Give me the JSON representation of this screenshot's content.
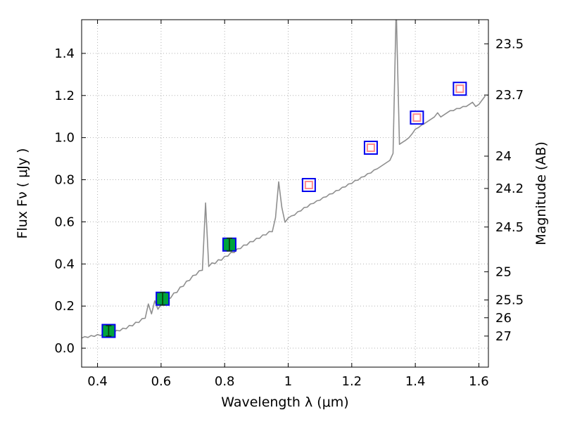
{
  "chart_data": {
    "type": "line",
    "title": "",
    "xlabel": "Wavelength  λ (μm)",
    "ylabel": "Flux  Fν  ( μJy )",
    "xlim": [
      0.35,
      1.63
    ],
    "ylim": [
      -0.09,
      1.56
    ],
    "x_ticks": [
      0.4,
      0.6,
      0.8,
      1,
      1.2,
      1.4,
      1.6
    ],
    "x_tick_labels": [
      "0.4",
      "0.6",
      "0.8",
      "1",
      "1.2",
      "1.4",
      "1.6"
    ],
    "y_ticks": [
      0,
      0.2,
      0.4,
      0.6,
      0.8,
      1,
      1.2,
      1.4
    ],
    "y_tick_labels": [
      "0.0",
      "0.2",
      "0.4",
      "0.6",
      "0.8",
      "1.0",
      "1.2",
      "1.4"
    ],
    "grid": true,
    "legend": "none",
    "right_axis": {
      "label": "Magnitude (AB)",
      "ticks": [
        23.5,
        23.7,
        24,
        24.2,
        24.5,
        25,
        25.5,
        26,
        27
      ],
      "tick_labels": [
        "23.5",
        "23.7",
        "24",
        "24.2",
        "24.5",
        "25",
        "25.5",
        "26",
        "27"
      ],
      "ab_zeropoint_ujy": 23.9
    },
    "colors": {
      "grid": "#b3b3b3",
      "frame": "#000000",
      "spectrum": "#8f8f8f",
      "marker_edge_blue": "#0000ee",
      "marker_face_green": "#00a33d",
      "marker_inner_pink": "#ff8c8c",
      "errorbar": "#0b3d0b",
      "background": "#ffffff"
    },
    "spectrum": {
      "name": "galaxy-spectrum",
      "color": "#8f8f8f",
      "x_start": 0.35,
      "x_step": 0.01,
      "y": [
        0.048,
        0.055,
        0.051,
        0.06,
        0.056,
        0.065,
        0.06,
        0.07,
        0.066,
        0.077,
        0.073,
        0.085,
        0.082,
        0.095,
        0.092,
        0.108,
        0.106,
        0.123,
        0.122,
        0.14,
        0.142,
        0.21,
        0.163,
        0.225,
        0.185,
        0.208,
        0.212,
        0.235,
        0.238,
        0.262,
        0.265,
        0.29,
        0.294,
        0.318,
        0.322,
        0.345,
        0.348,
        0.368,
        0.37,
        0.69,
        0.388,
        0.405,
        0.402,
        0.42,
        0.418,
        0.436,
        0.437,
        0.455,
        0.454,
        0.472,
        0.473,
        0.49,
        0.49,
        0.506,
        0.506,
        0.522,
        0.522,
        0.538,
        0.538,
        0.554,
        0.553,
        0.62,
        0.79,
        0.668,
        0.598,
        0.618,
        0.628,
        0.632,
        0.648,
        0.652,
        0.668,
        0.67,
        0.685,
        0.688,
        0.7,
        0.703,
        0.716,
        0.719,
        0.732,
        0.734,
        0.748,
        0.75,
        0.764,
        0.766,
        0.78,
        0.782,
        0.796,
        0.798,
        0.812,
        0.815,
        0.829,
        0.832,
        0.846,
        0.852,
        0.862,
        0.872,
        0.882,
        0.892,
        0.925,
        1.62,
        0.968,
        0.978,
        0.988,
        1.0,
        1.018,
        1.04,
        1.048,
        1.06,
        1.068,
        1.078,
        1.088,
        1.098,
        1.118,
        1.098,
        1.108,
        1.118,
        1.128,
        1.128,
        1.138,
        1.138,
        1.148,
        1.148,
        1.158,
        1.168,
        1.148,
        1.158,
        1.178,
        1.198
      ]
    },
    "photometry": [
      {
        "name": "measured-flux-points",
        "marker": "square-filled",
        "face": "#00a33d",
        "edge": "#0000ee",
        "errorbar_color": "#0b3d0b",
        "points": [
          {
            "x": 0.435,
            "y": 0.082,
            "yerr": 0.025
          },
          {
            "x": 0.605,
            "y": 0.235,
            "yerr": 0.03
          },
          {
            "x": 0.815,
            "y": 0.492,
            "yerr": 0.03
          }
        ]
      },
      {
        "name": "predicted-flux-points",
        "marker": "square-open",
        "face": "#ffffff",
        "edge": "#0000ee",
        "inner_edge": "#ff8c8c",
        "points": [
          {
            "x": 1.065,
            "y": 0.775
          },
          {
            "x": 1.26,
            "y": 0.952
          },
          {
            "x": 1.405,
            "y": 1.095
          },
          {
            "x": 1.54,
            "y": 1.232
          }
        ]
      }
    ]
  }
}
